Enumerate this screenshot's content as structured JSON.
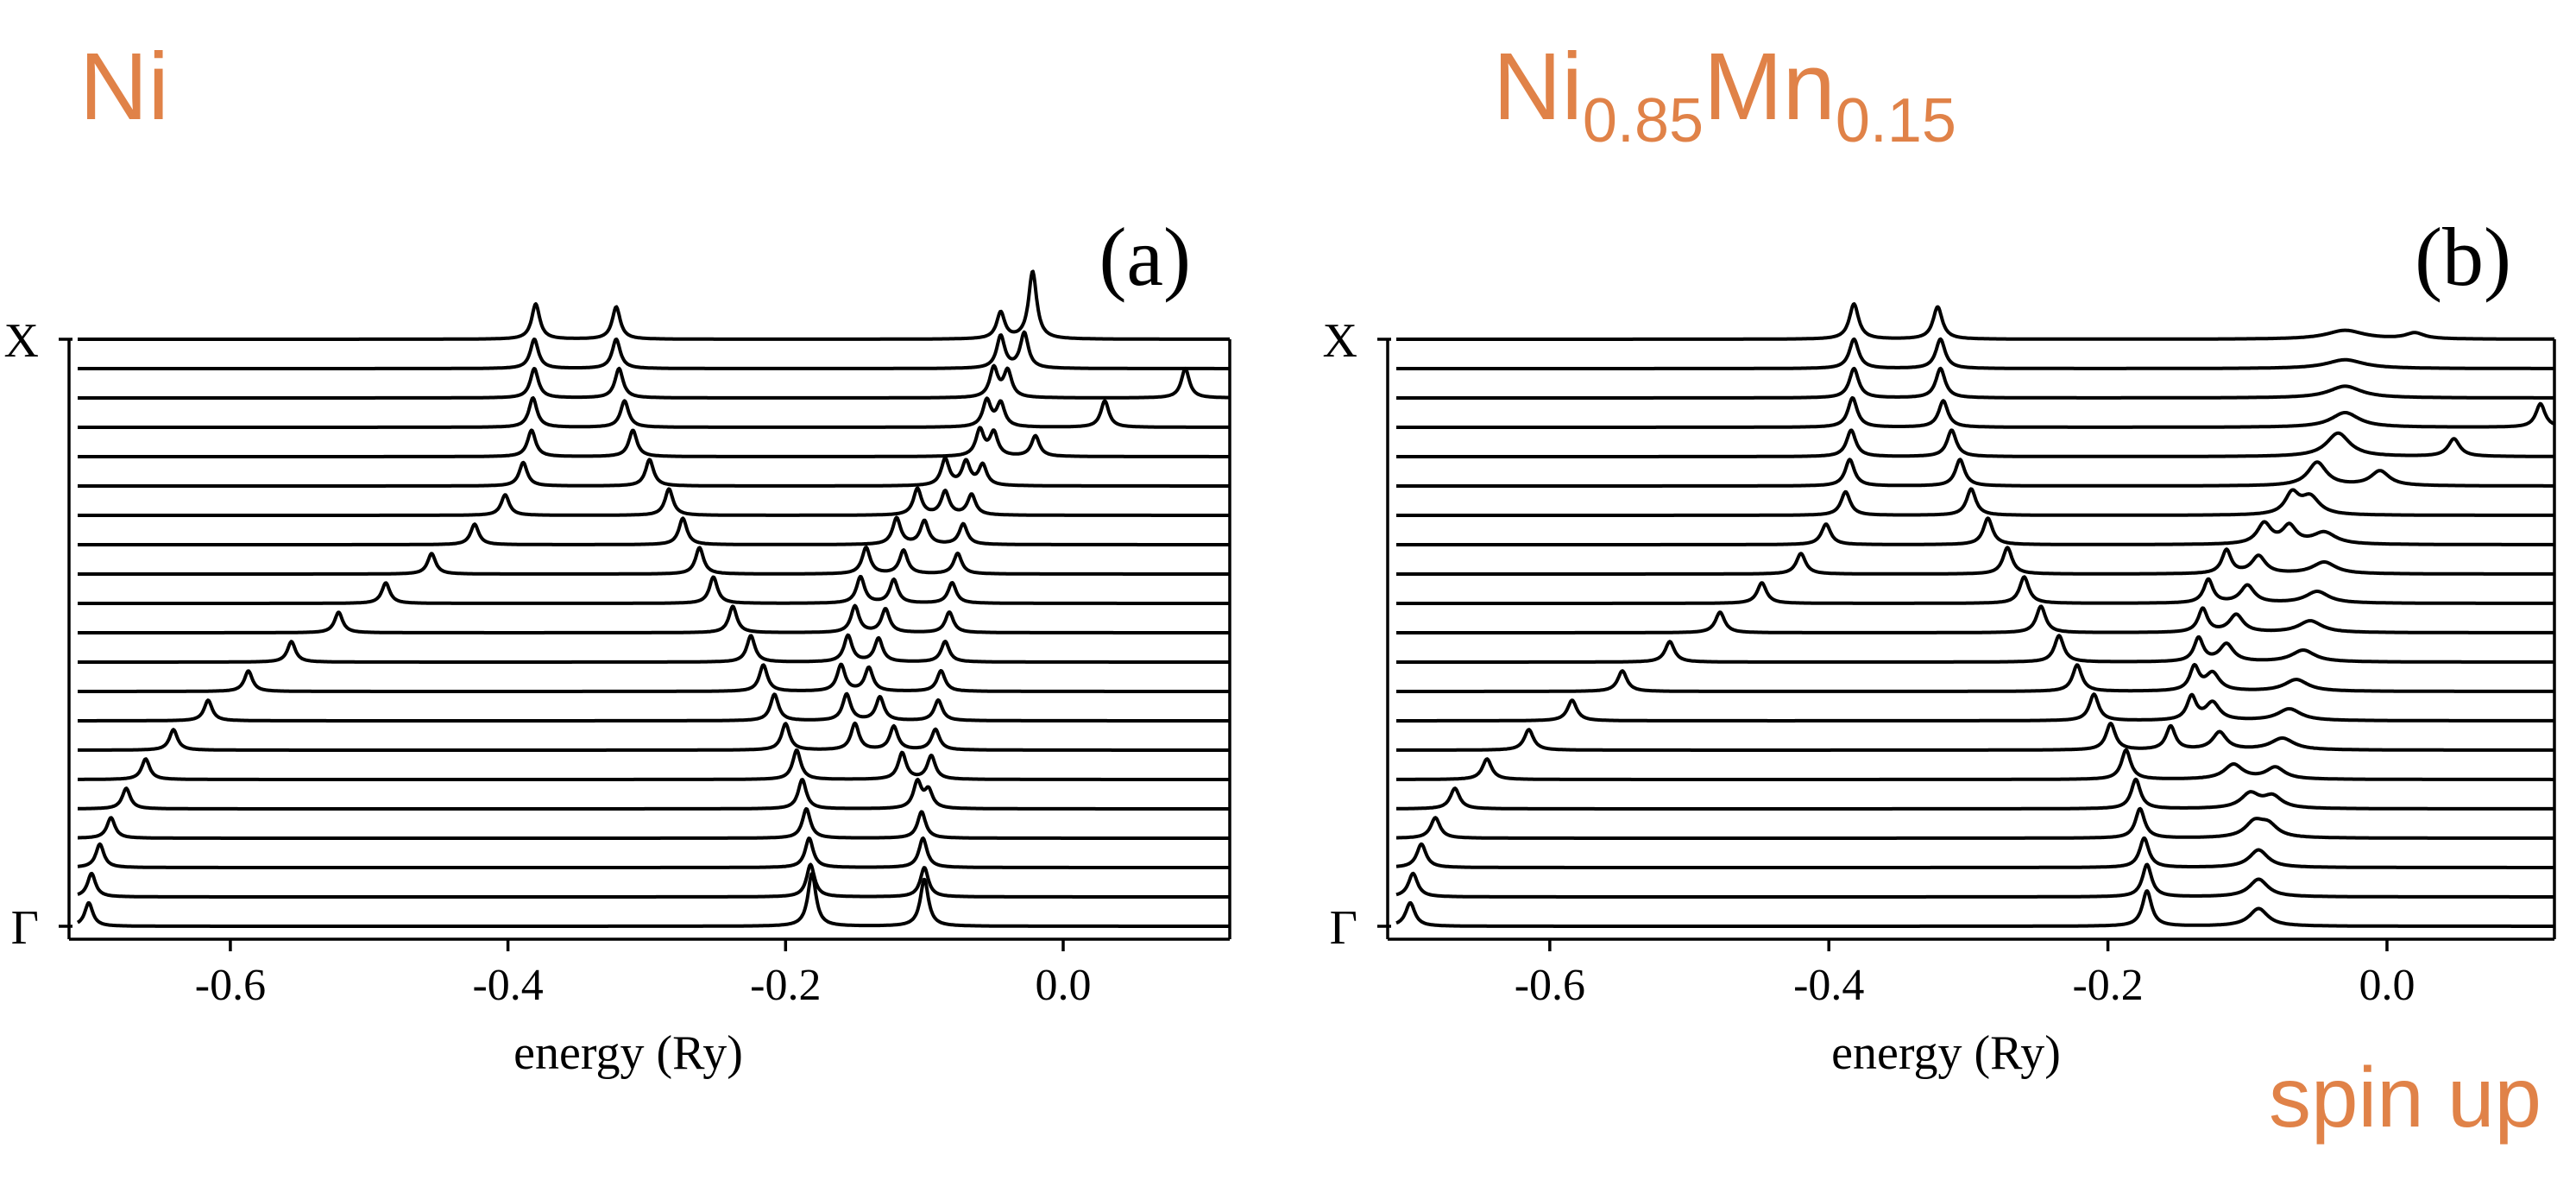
{
  "labels": {
    "left_title": "Ni",
    "right_title_base1": "Ni",
    "right_title_sub1": "0.85",
    "right_title_base2": "Mn",
    "right_title_sub2": "0.15",
    "spin": "spin up",
    "panel_a": "(a)",
    "panel_b": "(b)"
  },
  "colors": {
    "label_orange": "#e08248",
    "line": "#000000"
  },
  "chart_data": [
    {
      "type": "line",
      "panel": "(a)",
      "xlabel": "energy (Ry)",
      "x_ticks": [
        -0.6,
        -0.4,
        -0.2,
        0.0
      ],
      "x_tick_labels": [
        "-0.6",
        "-0.4",
        "-0.2",
        "0.0"
      ],
      "xlim": [
        -0.71,
        0.12
      ],
      "y_ticks": [
        "Γ",
        "X"
      ],
      "grid": false,
      "n_traces": 21,
      "peak_width": 0.0035,
      "description_of_series": "stacked Bloch spectral function traces from Γ (bottom) to X (top); peaks per k-point given as [energy, height]",
      "series": [
        {
          "k": 0,
          "peaks": [
            [
              -0.702,
              0.8
            ],
            [
              -0.181,
              1.2
            ],
            [
              -0.181,
              0.6
            ],
            [
              -0.1,
              1.1
            ],
            [
              -0.1,
              0.5
            ]
          ]
        },
        {
          "k": 1,
          "peaks": [
            [
              -0.7,
              0.8
            ],
            [
              -0.182,
              1.1
            ],
            [
              -0.1,
              1.0
            ]
          ]
        },
        {
          "k": 2,
          "peaks": [
            [
              -0.694,
              0.8
            ],
            [
              -0.183,
              1.0
            ],
            [
              -0.101,
              1.0
            ]
          ]
        },
        {
          "k": 3,
          "peaks": [
            [
              -0.686,
              0.7
            ],
            [
              -0.185,
              1.0
            ],
            [
              -0.102,
              0.9
            ]
          ]
        },
        {
          "k": 4,
          "peaks": [
            [
              -0.675,
              0.7
            ],
            [
              -0.188,
              1.0
            ],
            [
              -0.105,
              0.9
            ],
            [
              -0.097,
              0.6
            ]
          ]
        },
        {
          "k": 5,
          "peaks": [
            [
              -0.661,
              0.7
            ],
            [
              -0.192,
              1.0
            ],
            [
              -0.116,
              0.9
            ],
            [
              -0.095,
              0.8
            ]
          ]
        },
        {
          "k": 6,
          "peaks": [
            [
              -0.641,
              0.7
            ],
            [
              -0.2,
              0.9
            ],
            [
              -0.15,
              0.9
            ],
            [
              -0.122,
              0.8
            ],
            [
              -0.092,
              0.7
            ]
          ]
        },
        {
          "k": 7,
          "peaks": [
            [
              -0.616,
              0.7
            ],
            [
              -0.208,
              0.9
            ],
            [
              -0.156,
              0.9
            ],
            [
              -0.132,
              0.8
            ],
            [
              -0.09,
              0.7
            ]
          ]
        },
        {
          "k": 8,
          "peaks": [
            [
              -0.587,
              0.7
            ],
            [
              -0.216,
              0.9
            ],
            [
              -0.16,
              0.9
            ],
            [
              -0.14,
              0.8
            ],
            [
              -0.088,
              0.7
            ]
          ]
        },
        {
          "k": 9,
          "peaks": [
            [
              -0.556,
              0.7
            ],
            [
              -0.225,
              0.9
            ],
            [
              -0.155,
              0.9
            ],
            [
              -0.133,
              0.8
            ],
            [
              -0.085,
              0.7
            ]
          ]
        },
        {
          "k": 10,
          "peaks": [
            [
              -0.522,
              0.7
            ],
            [
              -0.238,
              0.9
            ],
            [
              -0.15,
              0.9
            ],
            [
              -0.128,
              0.8
            ],
            [
              -0.082,
              0.7
            ]
          ]
        },
        {
          "k": 11,
          "peaks": [
            [
              -0.488,
              0.7
            ],
            [
              -0.252,
              0.9
            ],
            [
              -0.146,
              0.9
            ],
            [
              -0.122,
              0.8
            ],
            [
              -0.08,
              0.7
            ]
          ]
        },
        {
          "k": 12,
          "peaks": [
            [
              -0.455,
              0.7
            ],
            [
              -0.262,
              0.9
            ],
            [
              -0.142,
              0.9
            ],
            [
              -0.115,
              0.8
            ],
            [
              -0.076,
              0.7
            ]
          ]
        },
        {
          "k": 13,
          "peaks": [
            [
              -0.424,
              0.7
            ],
            [
              -0.274,
              0.9
            ],
            [
              -0.12,
              0.9
            ],
            [
              -0.1,
              0.8
            ],
            [
              -0.072,
              0.7
            ]
          ]
        },
        {
          "k": 14,
          "peaks": [
            [
              -0.402,
              0.7
            ],
            [
              -0.284,
              0.9
            ],
            [
              -0.105,
              0.9
            ],
            [
              -0.085,
              0.8
            ],
            [
              -0.066,
              0.7
            ]
          ]
        },
        {
          "k": 15,
          "peaks": [
            [
              -0.389,
              0.8
            ],
            [
              -0.298,
              0.9
            ],
            [
              -0.085,
              0.9
            ],
            [
              -0.07,
              0.8
            ],
            [
              -0.058,
              0.7
            ]
          ]
        },
        {
          "k": 16,
          "peaks": [
            [
              -0.383,
              0.9
            ],
            [
              -0.31,
              0.9
            ],
            [
              -0.06,
              0.9
            ],
            [
              -0.05,
              0.8
            ],
            [
              -0.02,
              0.7
            ]
          ]
        },
        {
          "k": 17,
          "peaks": [
            [
              -0.382,
              1.0
            ],
            [
              -0.316,
              0.9
            ],
            [
              -0.055,
              0.9
            ],
            [
              -0.045,
              0.8
            ],
            [
              0.03,
              0.9
            ]
          ]
        },
        {
          "k": 18,
          "peaks": [
            [
              -0.381,
              1.0
            ],
            [
              -0.32,
              1.0
            ],
            [
              -0.05,
              1.0
            ],
            [
              -0.04,
              0.9
            ],
            [
              0.088,
              1.0
            ]
          ]
        },
        {
          "k": 19,
          "peaks": [
            [
              -0.381,
              1.0
            ],
            [
              -0.322,
              1.0
            ],
            [
              -0.045,
              1.1
            ],
            [
              -0.028,
              1.2
            ]
          ]
        },
        {
          "k": 20,
          "peaks": [
            [
              -0.38,
              1.2
            ],
            [
              -0.322,
              1.1
            ],
            [
              -0.045,
              0.9
            ],
            [
              -0.022,
              2.3
            ]
          ]
        }
      ]
    },
    {
      "type": "line",
      "panel": "(b)",
      "xlabel": "energy (Ry)",
      "x_ticks": [
        -0.6,
        -0.4,
        -0.2,
        0.0
      ],
      "x_tick_labels": [
        "-0.6",
        "-0.4",
        "-0.2",
        "0.0"
      ],
      "xlim": [
        -0.71,
        0.12
      ],
      "y_ticks": [
        "Γ",
        "X"
      ],
      "grid": false,
      "n_traces": 21,
      "description_of_series": "stacked Bloch spectral function traces from Γ (bottom) to X (top); peaks per k-point given as [energy, height, width]",
      "series": [
        {
          "k": 0,
          "peaks": [
            [
              -0.7,
              0.8,
              0.004
            ],
            [
              -0.172,
              1.2,
              0.004
            ],
            [
              -0.092,
              0.6,
              0.008
            ]
          ]
        },
        {
          "k": 1,
          "peaks": [
            [
              -0.698,
              0.8,
              0.004
            ],
            [
              -0.172,
              1.1,
              0.004
            ],
            [
              -0.092,
              0.6,
              0.008
            ]
          ]
        },
        {
          "k": 2,
          "peaks": [
            [
              -0.692,
              0.8,
              0.004
            ],
            [
              -0.174,
              1.0,
              0.004
            ],
            [
              -0.092,
              0.6,
              0.008
            ]
          ]
        },
        {
          "k": 3,
          "peaks": [
            [
              -0.682,
              0.7,
              0.004
            ],
            [
              -0.177,
              1.0,
              0.004
            ],
            [
              -0.095,
              0.5,
              0.008
            ],
            [
              -0.085,
              0.4,
              0.008
            ]
          ]
        },
        {
          "k": 4,
          "peaks": [
            [
              -0.668,
              0.7,
              0.004
            ],
            [
              -0.18,
              1.0,
              0.004
            ],
            [
              -0.098,
              0.5,
              0.008
            ],
            [
              -0.082,
              0.4,
              0.008
            ]
          ]
        },
        {
          "k": 5,
          "peaks": [
            [
              -0.645,
              0.7,
              0.004
            ],
            [
              -0.187,
              1.0,
              0.004
            ],
            [
              -0.11,
              0.5,
              0.008
            ],
            [
              -0.08,
              0.4,
              0.008
            ]
          ]
        },
        {
          "k": 6,
          "peaks": [
            [
              -0.615,
              0.7,
              0.004
            ],
            [
              -0.198,
              0.9,
              0.004
            ],
            [
              -0.155,
              0.8,
              0.004
            ],
            [
              -0.12,
              0.6,
              0.006
            ],
            [
              -0.075,
              0.4,
              0.01
            ]
          ]
        },
        {
          "k": 7,
          "peaks": [
            [
              -0.584,
              0.7,
              0.004
            ],
            [
              -0.21,
              0.9,
              0.004
            ],
            [
              -0.14,
              0.8,
              0.004
            ],
            [
              -0.125,
              0.6,
              0.006
            ],
            [
              -0.07,
              0.4,
              0.01
            ]
          ]
        },
        {
          "k": 8,
          "peaks": [
            [
              -0.548,
              0.7,
              0.004
            ],
            [
              -0.222,
              0.9,
              0.004
            ],
            [
              -0.138,
              0.8,
              0.004
            ],
            [
              -0.125,
              0.6,
              0.006
            ],
            [
              -0.065,
              0.4,
              0.01
            ]
          ]
        },
        {
          "k": 9,
          "peaks": [
            [
              -0.514,
              0.7,
              0.004
            ],
            [
              -0.235,
              0.9,
              0.004
            ],
            [
              -0.135,
              0.8,
              0.004
            ],
            [
              -0.115,
              0.6,
              0.006
            ],
            [
              -0.06,
              0.4,
              0.01
            ]
          ]
        },
        {
          "k": 10,
          "peaks": [
            [
              -0.478,
              0.7,
              0.004
            ],
            [
              -0.248,
              0.9,
              0.004
            ],
            [
              -0.132,
              0.8,
              0.004
            ],
            [
              -0.108,
              0.6,
              0.006
            ],
            [
              -0.055,
              0.4,
              0.01
            ]
          ]
        },
        {
          "k": 11,
          "peaks": [
            [
              -0.448,
              0.7,
              0.004
            ],
            [
              -0.26,
              0.9,
              0.004
            ],
            [
              -0.128,
              0.8,
              0.004
            ],
            [
              -0.1,
              0.6,
              0.006
            ],
            [
              -0.05,
              0.4,
              0.01
            ]
          ]
        },
        {
          "k": 12,
          "peaks": [
            [
              -0.42,
              0.7,
              0.004
            ],
            [
              -0.272,
              0.9,
              0.004
            ],
            [
              -0.115,
              0.8,
              0.004
            ],
            [
              -0.092,
              0.6,
              0.006
            ],
            [
              -0.045,
              0.4,
              0.01
            ]
          ]
        },
        {
          "k": 13,
          "peaks": [
            [
              -0.402,
              0.7,
              0.004
            ],
            [
              -0.286,
              0.9,
              0.004
            ],
            [
              -0.088,
              0.7,
              0.006
            ],
            [
              -0.07,
              0.6,
              0.006
            ],
            [
              -0.045,
              0.4,
              0.01
            ]
          ]
        },
        {
          "k": 14,
          "peaks": [
            [
              -0.388,
              0.8,
              0.004
            ],
            [
              -0.298,
              0.9,
              0.004
            ],
            [
              -0.068,
              0.7,
              0.006
            ],
            [
              -0.055,
              0.6,
              0.008
            ]
          ]
        },
        {
          "k": 15,
          "peaks": [
            [
              -0.385,
              0.9,
              0.004
            ],
            [
              -0.306,
              0.9,
              0.004
            ],
            [
              -0.05,
              0.8,
              0.008
            ],
            [
              -0.005,
              0.5,
              0.008
            ]
          ]
        },
        {
          "k": 16,
          "peaks": [
            [
              -0.384,
              0.9,
              0.004
            ],
            [
              -0.312,
              0.9,
              0.004
            ],
            [
              -0.035,
              0.8,
              0.01
            ],
            [
              0.048,
              0.6,
              0.005
            ]
          ]
        },
        {
          "k": 17,
          "peaks": [
            [
              -0.383,
              1.0,
              0.004
            ],
            [
              -0.318,
              0.9,
              0.004
            ],
            [
              -0.03,
              0.5,
              0.012
            ],
            [
              0.11,
              0.8,
              0.004
            ]
          ]
        },
        {
          "k": 18,
          "peaks": [
            [
              -0.382,
              1.0,
              0.004
            ],
            [
              -0.32,
              1.0,
              0.004
            ],
            [
              -0.03,
              0.4,
              0.014
            ]
          ]
        },
        {
          "k": 19,
          "peaks": [
            [
              -0.382,
              1.0,
              0.004
            ],
            [
              -0.32,
              1.0,
              0.004
            ],
            [
              -0.03,
              0.3,
              0.016
            ]
          ]
        },
        {
          "k": 20,
          "peaks": [
            [
              -0.382,
              1.2,
              0.004
            ],
            [
              -0.322,
              1.1,
              0.004
            ],
            [
              -0.03,
              0.3,
              0.016
            ],
            [
              0.02,
              0.2,
              0.008
            ]
          ]
        }
      ]
    }
  ]
}
